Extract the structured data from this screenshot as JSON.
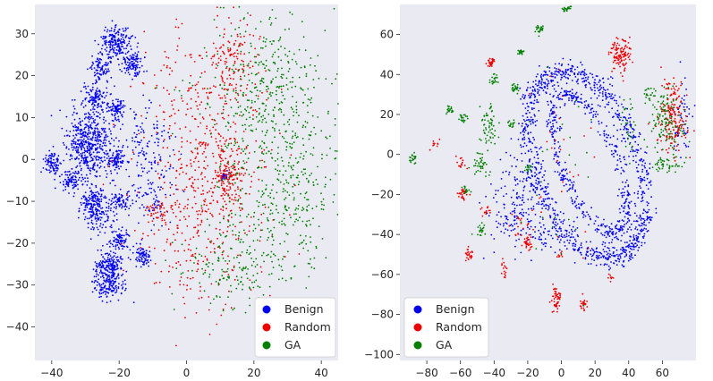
{
  "chart_data": [
    {
      "type": "scatter",
      "title": "",
      "xlabel": "",
      "ylabel": "",
      "xlim": [
        -45,
        45
      ],
      "ylim": [
        -48,
        37
      ],
      "xticks": [
        -40,
        -20,
        0,
        20,
        40
      ],
      "yticks": [
        -40,
        -30,
        -20,
        -10,
        0,
        10,
        20,
        30
      ],
      "grid": false,
      "legend_position": "lower-right",
      "series": [
        {
          "name": "Benign",
          "color": "#0000ee",
          "clusters": [
            {
              "x": -29,
              "y": 4,
              "sx": 3.2,
              "sy": 4.5,
              "n": 520
            },
            {
              "x": -21,
              "y": 28,
              "sx": 2.3,
              "sy": 2.1,
              "n": 200
            },
            {
              "x": -16,
              "y": 23,
              "sx": 1.6,
              "sy": 1.6,
              "n": 110
            },
            {
              "x": -26,
              "y": 22,
              "sx": 1.5,
              "sy": 1.5,
              "n": 90
            },
            {
              "x": -27,
              "y": 15,
              "sx": 1.6,
              "sy": 1.6,
              "n": 100
            },
            {
              "x": -21,
              "y": 12,
              "sx": 1.3,
              "sy": 1.3,
              "n": 90
            },
            {
              "x": -21,
              "y": 0,
              "sx": 1.3,
              "sy": 1.3,
              "n": 80
            },
            {
              "x": -40,
              "y": -1,
              "sx": 1.4,
              "sy": 1.4,
              "n": 90
            },
            {
              "x": -34,
              "y": -5,
              "sx": 1.5,
              "sy": 1.5,
              "n": 80
            },
            {
              "x": -28,
              "y": -10,
              "sx": 1.8,
              "sy": 1.8,
              "n": 110
            },
            {
              "x": -26,
              "y": -13,
              "sx": 2.2,
              "sy": 2.2,
              "n": 130
            },
            {
              "x": -20,
              "y": -10,
              "sx": 1.4,
              "sy": 1.4,
              "n": 70
            },
            {
              "x": -20,
              "y": -19,
              "sx": 1.3,
              "sy": 1.3,
              "n": 80
            },
            {
              "x": -13,
              "y": -23,
              "sx": 1.3,
              "sy": 1.3,
              "n": 80
            },
            {
              "x": -23,
              "y": -25,
              "sx": 2.0,
              "sy": 1.6,
              "n": 120
            },
            {
              "x": -23,
              "y": -29,
              "sx": 2.6,
              "sy": 2.2,
              "n": 200
            },
            {
              "x": -12,
              "y": 3,
              "sx": 4.0,
              "sy": 6.0,
              "n": 150
            },
            {
              "x": -10,
              "y": -10,
              "sx": 3.0,
              "sy": 3.0,
              "n": 60
            },
            {
              "x": 11,
              "y": -4,
              "sx": 0.6,
              "sy": 0.6,
              "n": 25
            }
          ]
        },
        {
          "name": "Random",
          "color": "#ee0000",
          "clusters": [
            {
              "x": 5,
              "y": 8,
              "sx": 10.0,
              "sy": 11.0,
              "n": 330
            },
            {
              "x": 5,
              "y": -17,
              "sx": 9.0,
              "sy": 10.0,
              "n": 280
            },
            {
              "x": 13,
              "y": 24,
              "sx": 3.5,
              "sy": 5.0,
              "n": 110
            },
            {
              "x": 12,
              "y": -4,
              "sx": 2.0,
              "sy": 3.5,
              "n": 130
            },
            {
              "x": -8,
              "y": -12,
              "sx": 2.0,
              "sy": 1.5,
              "n": 40
            }
          ]
        },
        {
          "name": "GA",
          "color": "#008000",
          "clusters": [
            {
              "x": 25,
              "y": 15,
              "sx": 10.0,
              "sy": 10.0,
              "n": 420
            },
            {
              "x": 28,
              "y": -10,
              "sx": 9.0,
              "sy": 10.0,
              "n": 330
            },
            {
              "x": 12,
              "y": -26,
              "sx": 8.0,
              "sy": 5.0,
              "n": 130
            }
          ]
        }
      ]
    },
    {
      "type": "scatter",
      "title": "",
      "xlabel": "",
      "ylabel": "",
      "xlim": [
        -96,
        80
      ],
      "ylim": [
        -103,
        75
      ],
      "xticks": [
        -80,
        -60,
        -40,
        -20,
        0,
        20,
        40,
        60
      ],
      "yticks": [
        -100,
        -80,
        -60,
        -40,
        -20,
        0,
        20,
        40,
        60
      ],
      "grid": false,
      "legend_position": "lower-left",
      "series": [
        {
          "name": "Benign",
          "color": "#0000ee",
          "rings": [
            {
              "x": 15,
              "y": -5,
              "a": 30,
              "b": 50,
              "rot": 0.45,
              "w": 3.0,
              "n": 950
            },
            {
              "x": 17,
              "y": -5,
              "a": 16,
              "b": 38,
              "rot": 0.45,
              "w": 2.0,
              "n": 450
            }
          ],
          "clusters": [
            {
              "x": -28,
              "y": -25,
              "sx": 8.0,
              "sy": 12.0,
              "n": 160
            },
            {
              "x": -10,
              "y": -40,
              "sx": 6.0,
              "sy": 5.0,
              "n": 50
            },
            {
              "x": 72,
              "y": 15,
              "sx": 3.0,
              "sy": 10.0,
              "n": 50
            }
          ]
        },
        {
          "name": "Random",
          "color": "#ee0000",
          "clusters": [
            {
              "x": 35,
              "y": 50,
              "sx": 3.0,
              "sy": 4.0,
              "n": 120
            },
            {
              "x": 66,
              "y": 20,
              "sx": 4.5,
              "sy": 9.0,
              "n": 190
            },
            {
              "x": -42,
              "y": 46,
              "sx": 1.2,
              "sy": 1.2,
              "n": 30
            },
            {
              "x": -58,
              "y": -20,
              "sx": 1.5,
              "sy": 1.5,
              "n": 25
            },
            {
              "x": -55,
              "y": -50,
              "sx": 1.5,
              "sy": 1.5,
              "n": 25
            },
            {
              "x": -20,
              "y": -45,
              "sx": 1.5,
              "sy": 2.0,
              "n": 30
            },
            {
              "x": -3,
              "y": -72,
              "sx": 1.5,
              "sy": 3.0,
              "n": 50
            },
            {
              "x": 13,
              "y": -75,
              "sx": 1.2,
              "sy": 1.5,
              "n": 25
            },
            {
              "x": -34,
              "y": -57,
              "sx": 1.0,
              "sy": 2.0,
              "n": 15
            },
            {
              "x": -60,
              "y": -5,
              "sx": 1.5,
              "sy": 1.5,
              "n": 15
            },
            {
              "x": -45,
              "y": -28,
              "sx": 1.5,
              "sy": 1.5,
              "n": 15
            },
            {
              "x": -25,
              "y": -35,
              "sx": 3.0,
              "sy": 3.0,
              "n": 20
            },
            {
              "x": 30,
              "y": -62,
              "sx": 1.0,
              "sy": 1.0,
              "n": 8
            },
            {
              "x": 0,
              "y": -50,
              "sx": 1.0,
              "sy": 1.0,
              "n": 8
            },
            {
              "x": -75,
              "y": 5,
              "sx": 1.5,
              "sy": 1.5,
              "n": 10
            },
            {
              "x": 0,
              "y": -5,
              "sx": 15.0,
              "sy": 30.0,
              "n": 30
            }
          ]
        },
        {
          "name": "GA",
          "color": "#008000",
          "clusters": [
            {
              "x": 3,
              "y": 73,
              "sx": 1.2,
              "sy": 0.8,
              "n": 25
            },
            {
              "x": -13,
              "y": 63,
              "sx": 1.2,
              "sy": 1.2,
              "n": 25
            },
            {
              "x": -24,
              "y": 51,
              "sx": 1.0,
              "sy": 1.0,
              "n": 20
            },
            {
              "x": -40,
              "y": 38,
              "sx": 1.2,
              "sy": 1.2,
              "n": 20
            },
            {
              "x": -27,
              "y": 33,
              "sx": 1.2,
              "sy": 1.2,
              "n": 25
            },
            {
              "x": -88,
              "y": -2,
              "sx": 1.2,
              "sy": 1.2,
              "n": 20
            },
            {
              "x": -66,
              "y": 22,
              "sx": 1.2,
              "sy": 1.2,
              "n": 20
            },
            {
              "x": -58,
              "y": 18,
              "sx": 1.2,
              "sy": 1.2,
              "n": 20
            },
            {
              "x": -43,
              "y": 15,
              "sx": 3.0,
              "sy": 6.0,
              "n": 60
            },
            {
              "x": -48,
              "y": -5,
              "sx": 3.0,
              "sy": 3.0,
              "n": 40
            },
            {
              "x": -57,
              "y": -18,
              "sx": 1.2,
              "sy": 1.2,
              "n": 15
            },
            {
              "x": -48,
              "y": -38,
              "sx": 1.5,
              "sy": 1.5,
              "n": 20
            },
            {
              "x": -30,
              "y": 15,
              "sx": 1.2,
              "sy": 1.2,
              "n": 15
            },
            {
              "x": -20,
              "y": -7,
              "sx": 1.2,
              "sy": 1.2,
              "n": 15
            },
            {
              "x": 62,
              "y": -5,
              "sx": 5.0,
              "sy": 2.0,
              "n": 40
            },
            {
              "x": 62,
              "y": 18,
              "sx": 5.0,
              "sy": 10.0,
              "n": 120
            },
            {
              "x": 40,
              "y": 15,
              "sx": 2.0,
              "sy": 8.0,
              "n": 30
            },
            {
              "x": 52,
              "y": 30,
              "sx": 2.0,
              "sy": 2.0,
              "n": 20
            },
            {
              "x": 0,
              "y": -10,
              "sx": 12.0,
              "sy": 25.0,
              "n": 25
            }
          ]
        }
      ]
    }
  ]
}
